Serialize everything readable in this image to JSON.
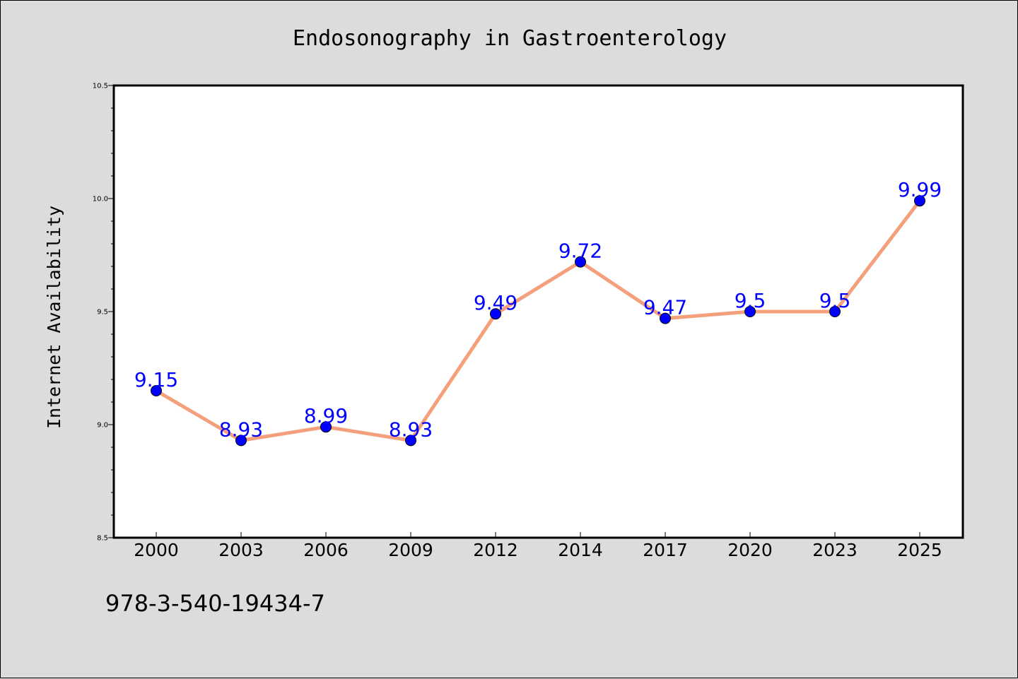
{
  "colors": {
    "background": "#dcdcdc",
    "plot_background": "#ffffff",
    "line": "#f4a07c",
    "marker": "#0000ff",
    "data_label": "#0000ff"
  },
  "footnote": "978-3-540-19434-7",
  "chart_data": {
    "type": "line",
    "title": "Endosonography in Gastroenterology",
    "xlabel": "",
    "ylabel": "Internet Availability",
    "categories": [
      "2000",
      "2003",
      "2006",
      "2009",
      "2012",
      "2014",
      "2017",
      "2020",
      "2023",
      "2025"
    ],
    "series": [
      {
        "values": [
          9.15,
          8.93,
          8.99,
          8.93,
          9.49,
          9.72,
          9.47,
          9.5,
          9.5,
          9.99
        ],
        "labels": [
          "9.15",
          "8.93",
          "8.99",
          "8.93",
          "9.49",
          "9.72",
          "9.47",
          "9.5",
          "9.5",
          "9.99"
        ]
      }
    ],
    "ylim": [
      8.5,
      10.5
    ],
    "yticks": [
      "8.5",
      "9.0",
      "9.5",
      "10.0",
      "10.5"
    ],
    "ytick_values": [
      8.5,
      9.0,
      9.5,
      10.0,
      10.5
    ],
    "minor_tick_step": 0.1,
    "grid": false,
    "legend": "none"
  }
}
